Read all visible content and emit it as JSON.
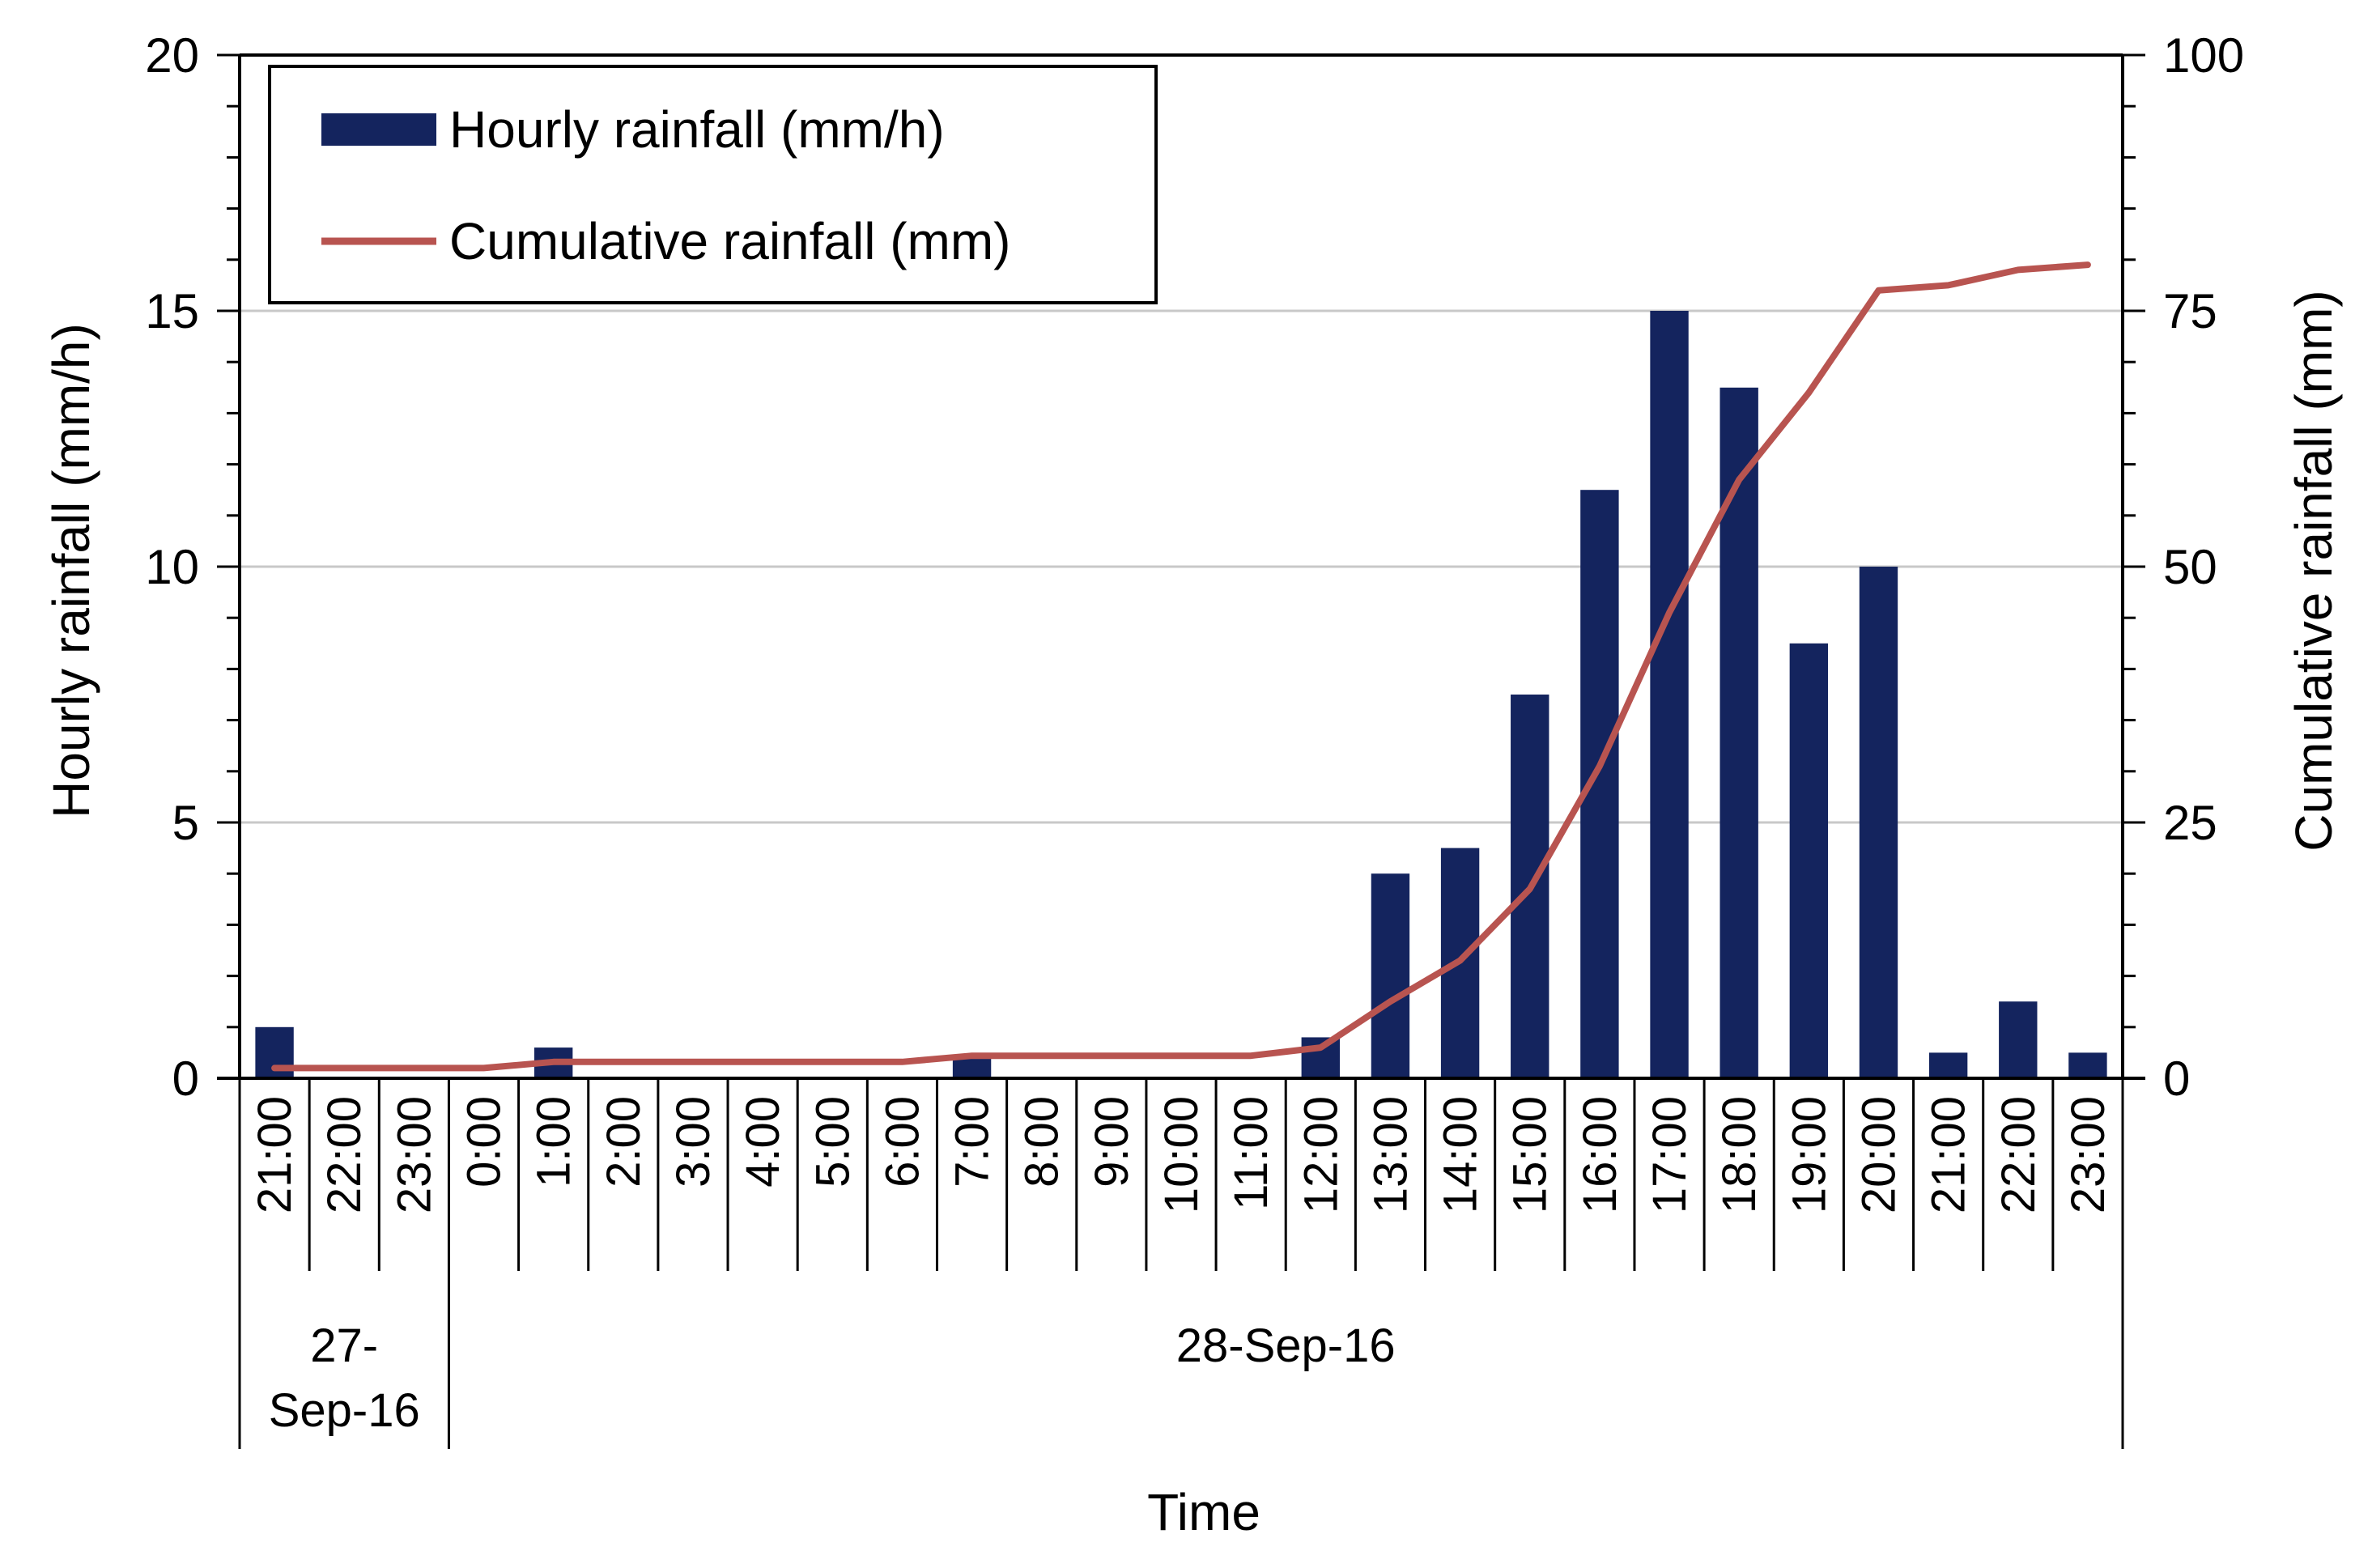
{
  "chart_data": {
    "type": "bar+line",
    "xlabel": "Time",
    "ylabel_left": "Hourly rainfall (mm/h)",
    "ylabel_right": "Cumulative rainfall (mm)",
    "ylim_left": [
      0,
      20
    ],
    "ylim_right": [
      0,
      100
    ],
    "yticks_left": [
      "0",
      "5",
      "10",
      "15",
      "20"
    ],
    "yticks_right": [
      "0",
      "25",
      "50",
      "75",
      "100"
    ],
    "grid": true,
    "legend_position": "top-left",
    "categories": [
      "21:00",
      "22:00",
      "23:00",
      "0:00",
      "1:00",
      "2:00",
      "3:00",
      "4:00",
      "5:00",
      "6:00",
      "7:00",
      "8:00",
      "9:00",
      "10:00",
      "11:00",
      "12:00",
      "13:00",
      "14:00",
      "15:00",
      "16:00",
      "17:00",
      "18:00",
      "19:00",
      "20:00",
      "21:00",
      "22:00",
      "23:00"
    ],
    "date_groups": [
      {
        "label_line1": "27-",
        "label_line2": "Sep-16",
        "start": 0,
        "end": 2
      },
      {
        "label_line1": "28-Sep-16",
        "label_line2": "",
        "start": 3,
        "end": 26
      }
    ],
    "series": [
      {
        "name": "Hourly rainfall (mm/h)",
        "kind": "bar",
        "axis": "left",
        "color": "#14245e",
        "values": [
          1.0,
          0,
          0,
          0,
          0.6,
          0,
          0,
          0,
          0,
          0,
          0.4,
          0,
          0,
          0,
          0,
          0.8,
          4.0,
          4.5,
          7.5,
          11.5,
          15.0,
          13.5,
          8.5,
          10.0,
          0.5,
          1.5,
          0.5
        ]
      },
      {
        "name": "Cumulative rainfall (mm)",
        "kind": "line",
        "axis": "right",
        "color": "#b85450",
        "values": [
          1.0,
          1.0,
          1.0,
          1.0,
          1.6,
          1.6,
          1.6,
          1.6,
          1.6,
          1.6,
          2.2,
          2.2,
          2.2,
          2.2,
          2.2,
          3.0,
          7.5,
          11.5,
          18.5,
          30.5,
          45.5,
          58.5,
          67.0,
          77.0,
          77.5,
          79.0,
          79.5
        ]
      }
    ]
  }
}
